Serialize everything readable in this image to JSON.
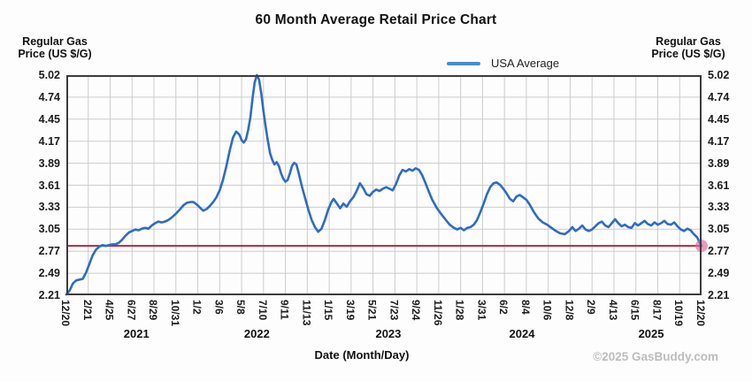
{
  "title": "60 Month Average Retail Price Chart",
  "y_axis_title": {
    "line1": "Regular Gas",
    "line2": "Price (US $/G)"
  },
  "x_axis_title": "Date (Month/Day)",
  "legend": {
    "label": "USA Average",
    "color": "#4a8bd4"
  },
  "copyright": "©2025 GasBuddy.com",
  "colors": {
    "line": "#2e6cc4",
    "reference_line": "#ab2b3f",
    "end_marker": "#e4679d",
    "grid": "#cccccc",
    "plot_border": "#3c3c3c",
    "tick_text": "#1c1c1c"
  },
  "chart_data": {
    "type": "line",
    "title": "60 Month Average Retail Price Chart",
    "xlabel": "Date (Month/Day)",
    "ylabel": "Regular Gas Price (US $/G)",
    "ylim": [
      2.21,
      5.02
    ],
    "grid": true,
    "legend_position": "top-right",
    "y_ticks": [
      "5.02",
      "4.74",
      "4.45",
      "4.17",
      "3.89",
      "3.61",
      "3.33",
      "3.05",
      "2.77",
      "2.49",
      "2.21"
    ],
    "x_ticks": [
      "12/20",
      "2/21",
      "4/25",
      "6/27",
      "8/29",
      "10/31",
      "1/2",
      "3/6",
      "5/8",
      "7/10",
      "9/11",
      "11/13",
      "1/15",
      "3/19",
      "5/21",
      "7/23",
      "9/24",
      "11/26",
      "1/28",
      "3/31",
      "6/2",
      "8/4",
      "10/6",
      "12/8",
      "2/9",
      "4/13",
      "6/15",
      "8/17",
      "10/19",
      "12/20"
    ],
    "year_labels": [
      {
        "label": "2021",
        "u": 3.2
      },
      {
        "label": "2022",
        "u": 8.7
      },
      {
        "label": "2023",
        "u": 14.7
      },
      {
        "label": "2024",
        "u": 20.8
      },
      {
        "label": "2025",
        "u": 26.7
      }
    ],
    "reference_line": {
      "value": 2.84
    },
    "end_marker": {
      "u": 29,
      "value": 2.84
    },
    "series": [
      {
        "name": "USA Average",
        "points": [
          [
            0,
            2.22
          ],
          [
            0.15,
            2.27
          ],
          [
            0.3,
            2.36
          ],
          [
            0.45,
            2.4
          ],
          [
            0.6,
            2.41
          ],
          [
            0.75,
            2.42
          ],
          [
            0.9,
            2.5
          ],
          [
            1.05,
            2.61
          ],
          [
            1.2,
            2.72
          ],
          [
            1.35,
            2.79
          ],
          [
            1.5,
            2.83
          ],
          [
            1.65,
            2.85
          ],
          [
            1.8,
            2.84
          ],
          [
            1.95,
            2.85
          ],
          [
            2.1,
            2.86
          ],
          [
            2.25,
            2.86
          ],
          [
            2.4,
            2.88
          ],
          [
            2.55,
            2.92
          ],
          [
            2.7,
            2.97
          ],
          [
            2.85,
            3.01
          ],
          [
            3.0,
            3.03
          ],
          [
            3.15,
            3.05
          ],
          [
            3.3,
            3.04
          ],
          [
            3.45,
            3.06
          ],
          [
            3.6,
            3.07
          ],
          [
            3.75,
            3.06
          ],
          [
            3.9,
            3.1
          ],
          [
            4.05,
            3.13
          ],
          [
            4.2,
            3.15
          ],
          [
            4.35,
            3.14
          ],
          [
            4.5,
            3.15
          ],
          [
            4.65,
            3.17
          ],
          [
            4.8,
            3.2
          ],
          [
            5.0,
            3.25
          ],
          [
            5.2,
            3.31
          ],
          [
            5.35,
            3.36
          ],
          [
            5.5,
            3.39
          ],
          [
            5.65,
            3.4
          ],
          [
            5.8,
            3.4
          ],
          [
            5.95,
            3.37
          ],
          [
            6.1,
            3.33
          ],
          [
            6.25,
            3.29
          ],
          [
            6.4,
            3.31
          ],
          [
            6.55,
            3.35
          ],
          [
            6.7,
            3.4
          ],
          [
            6.85,
            3.46
          ],
          [
            7.0,
            3.55
          ],
          [
            7.15,
            3.68
          ],
          [
            7.3,
            3.85
          ],
          [
            7.45,
            4.05
          ],
          [
            7.6,
            4.22
          ],
          [
            7.75,
            4.3
          ],
          [
            7.9,
            4.26
          ],
          [
            8.0,
            4.19
          ],
          [
            8.1,
            4.16
          ],
          [
            8.2,
            4.2
          ],
          [
            8.3,
            4.32
          ],
          [
            8.4,
            4.48
          ],
          [
            8.5,
            4.72
          ],
          [
            8.6,
            4.93
          ],
          [
            8.7,
            5.02
          ],
          [
            8.8,
            4.96
          ],
          [
            8.9,
            4.78
          ],
          [
            9.0,
            4.56
          ],
          [
            9.1,
            4.36
          ],
          [
            9.2,
            4.18
          ],
          [
            9.3,
            4.02
          ],
          [
            9.4,
            3.94
          ],
          [
            9.5,
            3.88
          ],
          [
            9.6,
            3.91
          ],
          [
            9.7,
            3.86
          ],
          [
            9.8,
            3.77
          ],
          [
            9.9,
            3.7
          ],
          [
            10.0,
            3.66
          ],
          [
            10.1,
            3.68
          ],
          [
            10.2,
            3.76
          ],
          [
            10.3,
            3.86
          ],
          [
            10.4,
            3.9
          ],
          [
            10.5,
            3.88
          ],
          [
            10.6,
            3.78
          ],
          [
            10.75,
            3.6
          ],
          [
            10.9,
            3.45
          ],
          [
            11.05,
            3.3
          ],
          [
            11.2,
            3.17
          ],
          [
            11.35,
            3.08
          ],
          [
            11.5,
            3.02
          ],
          [
            11.65,
            3.06
          ],
          [
            11.8,
            3.17
          ],
          [
            11.95,
            3.3
          ],
          [
            12.1,
            3.4
          ],
          [
            12.2,
            3.44
          ],
          [
            12.35,
            3.38
          ],
          [
            12.5,
            3.32
          ],
          [
            12.65,
            3.38
          ],
          [
            12.8,
            3.34
          ],
          [
            12.95,
            3.41
          ],
          [
            13.1,
            3.46
          ],
          [
            13.25,
            3.54
          ],
          [
            13.4,
            3.64
          ],
          [
            13.55,
            3.58
          ],
          [
            13.7,
            3.5
          ],
          [
            13.85,
            3.48
          ],
          [
            14.0,
            3.53
          ],
          [
            14.15,
            3.56
          ],
          [
            14.3,
            3.54
          ],
          [
            14.45,
            3.57
          ],
          [
            14.6,
            3.59
          ],
          [
            14.75,
            3.57
          ],
          [
            14.9,
            3.55
          ],
          [
            15.05,
            3.63
          ],
          [
            15.2,
            3.74
          ],
          [
            15.35,
            3.81
          ],
          [
            15.5,
            3.79
          ],
          [
            15.65,
            3.82
          ],
          [
            15.8,
            3.8
          ],
          [
            15.95,
            3.83
          ],
          [
            16.1,
            3.81
          ],
          [
            16.25,
            3.74
          ],
          [
            16.4,
            3.64
          ],
          [
            16.55,
            3.53
          ],
          [
            16.7,
            3.43
          ],
          [
            16.9,
            3.33
          ],
          [
            17.1,
            3.25
          ],
          [
            17.3,
            3.18
          ],
          [
            17.5,
            3.11
          ],
          [
            17.7,
            3.07
          ],
          [
            17.85,
            3.05
          ],
          [
            18.0,
            3.07
          ],
          [
            18.15,
            3.04
          ],
          [
            18.3,
            3.07
          ],
          [
            18.45,
            3.08
          ],
          [
            18.6,
            3.11
          ],
          [
            18.75,
            3.17
          ],
          [
            18.9,
            3.27
          ],
          [
            19.05,
            3.38
          ],
          [
            19.2,
            3.5
          ],
          [
            19.35,
            3.59
          ],
          [
            19.5,
            3.64
          ],
          [
            19.65,
            3.65
          ],
          [
            19.8,
            3.62
          ],
          [
            19.95,
            3.57
          ],
          [
            20.1,
            3.51
          ],
          [
            20.25,
            3.44
          ],
          [
            20.4,
            3.41
          ],
          [
            20.55,
            3.47
          ],
          [
            20.7,
            3.49
          ],
          [
            20.85,
            3.46
          ],
          [
            21.0,
            3.43
          ],
          [
            21.15,
            3.37
          ],
          [
            21.35,
            3.27
          ],
          [
            21.55,
            3.19
          ],
          [
            21.75,
            3.14
          ],
          [
            21.95,
            3.11
          ],
          [
            22.15,
            3.07
          ],
          [
            22.35,
            3.03
          ],
          [
            22.55,
            3.0
          ],
          [
            22.75,
            2.99
          ],
          [
            22.95,
            3.03
          ],
          [
            23.1,
            3.08
          ],
          [
            23.25,
            3.03
          ],
          [
            23.4,
            3.06
          ],
          [
            23.55,
            3.1
          ],
          [
            23.7,
            3.05
          ],
          [
            23.85,
            3.03
          ],
          [
            24.0,
            3.05
          ],
          [
            24.15,
            3.09
          ],
          [
            24.3,
            3.13
          ],
          [
            24.45,
            3.15
          ],
          [
            24.6,
            3.1
          ],
          [
            24.75,
            3.08
          ],
          [
            24.9,
            3.13
          ],
          [
            25.05,
            3.18
          ],
          [
            25.2,
            3.13
          ],
          [
            25.35,
            3.09
          ],
          [
            25.5,
            3.11
          ],
          [
            25.65,
            3.08
          ],
          [
            25.8,
            3.07
          ],
          [
            25.95,
            3.13
          ],
          [
            26.1,
            3.1
          ],
          [
            26.25,
            3.13
          ],
          [
            26.4,
            3.16
          ],
          [
            26.55,
            3.12
          ],
          [
            26.7,
            3.1
          ],
          [
            26.85,
            3.14
          ],
          [
            27.0,
            3.11
          ],
          [
            27.15,
            3.13
          ],
          [
            27.3,
            3.16
          ],
          [
            27.45,
            3.12
          ],
          [
            27.6,
            3.11
          ],
          [
            27.75,
            3.14
          ],
          [
            27.9,
            3.09
          ],
          [
            28.05,
            3.05
          ],
          [
            28.2,
            3.03
          ],
          [
            28.35,
            3.06
          ],
          [
            28.5,
            3.04
          ],
          [
            28.65,
            2.99
          ],
          [
            28.8,
            2.95
          ],
          [
            28.9,
            2.89
          ],
          [
            29.0,
            2.84
          ]
        ]
      }
    ]
  }
}
